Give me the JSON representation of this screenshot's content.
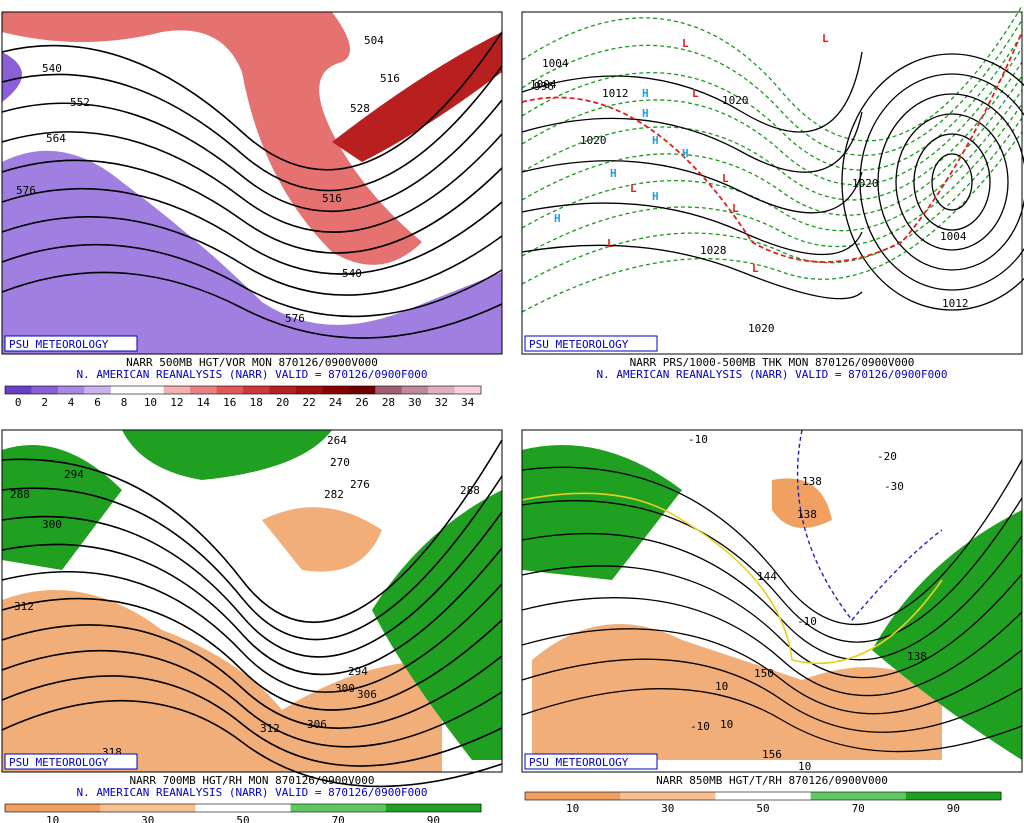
{
  "panels": [
    {
      "badge": "PSU METEOROLOGY",
      "caption": [
        "NARR 500MB HGT/VOR MON 870126/0900V000",
        "N. AMERICAN REANALYSIS (NARR) VALID = 870126/0900F000"
      ],
      "colorbar": {
        "labels": [
          0,
          2,
          4,
          6,
          8,
          10,
          12,
          14,
          16,
          18,
          20,
          22,
          24,
          26,
          28,
          30,
          32,
          34
        ],
        "colors": [
          "#6a3fc8",
          "#8a5fd8",
          "#a888e4",
          "#c8b4f0",
          "#ffffff",
          "#ffffff",
          "#f4b0b0",
          "#ec8080",
          "#e05858",
          "#d03838",
          "#b82020",
          "#a01010",
          "#880000",
          "#700000",
          "#a06070",
          "#c08898",
          "#e0b0c0",
          "#f8d0e0"
        ]
      },
      "labels": [
        "504",
        "516",
        "528",
        "540",
        "552",
        "564",
        "576",
        "576",
        "516",
        "540"
      ]
    },
    {
      "badge": "PSU METEOROLOGY",
      "caption": [
        "NARR PRS/1000-500MB THK MON 870126/0900V000",
        "N. AMERICAN REANALYSIS (NARR) VALID = 870126/0900F000"
      ],
      "labels": [
        "1004",
        "1012",
        "1020",
        "1020",
        "1028",
        "1020",
        "1004",
        "1012",
        "1020",
        "1004",
        "996",
        "H",
        "H",
        "H",
        "H",
        "H",
        "H",
        "H",
        "L",
        "L",
        "L",
        "L",
        "L",
        "L",
        "L",
        "L"
      ]
    },
    {
      "badge": "PSU METEOROLOGY",
      "caption": [
        "NARR 700MB HGT/RH MON 870126/0900V000",
        "N. AMERICAN REANALYSIS (NARR) VALID = 870126/0900F000"
      ],
      "colorbar": {
        "labels": [
          10,
          30,
          50,
          70,
          90
        ],
        "colors": [
          "#f0a060",
          "#f8c090",
          "#ffffff",
          "#60c860",
          "#20a020"
        ]
      },
      "labels": [
        "264",
        "270",
        "276",
        "282",
        "288",
        "294",
        "300",
        "306",
        "312",
        "318",
        "288",
        "294",
        "300",
        "306",
        "312"
      ]
    },
    {
      "badge": "PSU METEOROLOGY",
      "caption": [
        "NARR 850MB HGT/T/RH 870126/0900V000"
      ],
      "colorbar": {
        "labels": [
          10,
          30,
          50,
          70,
          90
        ],
        "colors": [
          "#f0a060",
          "#f8c090",
          "#ffffff",
          "#60c860",
          "#20a020"
        ]
      },
      "labels": [
        "-10",
        "-20",
        "-30",
        "138",
        "138",
        "138",
        "144",
        "150",
        "156",
        "-10",
        "10",
        "10",
        "10",
        "-10"
      ]
    }
  ]
}
